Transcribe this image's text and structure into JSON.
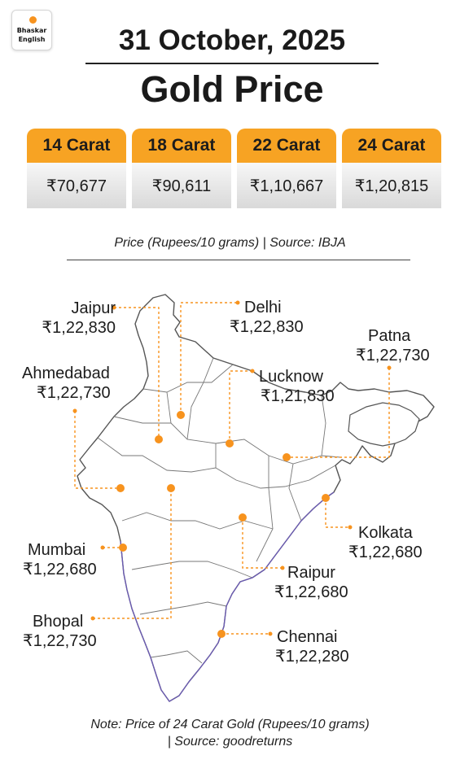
{
  "logo": {
    "line1": "Bhaskar",
    "line2": "English"
  },
  "header": {
    "date": "31 October, 2025",
    "title": "Gold Price"
  },
  "prices": [
    {
      "label": "14 Carat",
      "value": "₹70,677"
    },
    {
      "label": "18 Carat",
      "value": "₹90,611"
    },
    {
      "label": "22 Carat",
      "value": "₹1,10,667"
    },
    {
      "label": "24 Carat",
      "value": "₹1,20,815"
    }
  ],
  "source": "Price (Rupees/10 grams) | Source: IBJA",
  "cities": [
    {
      "name": "Jaipur",
      "price": "₹1,22,830"
    },
    {
      "name": "Delhi",
      "price": "₹1,22,830"
    },
    {
      "name": "Patna",
      "price": "₹1,22,730"
    },
    {
      "name": "Ahmedabad",
      "price": "₹1,22,730"
    },
    {
      "name": "Lucknow",
      "price": "₹1,21,830"
    },
    {
      "name": "Mumbai",
      "price": "₹1,22,680"
    },
    {
      "name": "Kolkata",
      "price": "₹1,22,680"
    },
    {
      "name": "Raipur",
      "price": "₹1,22,680"
    },
    {
      "name": "Bhopal",
      "price": "₹1,22,730"
    },
    {
      "name": "Chennai",
      "price": "₹1,22,280"
    }
  ],
  "note": {
    "line1": "Note: Price of 24 Carat Gold (Rupees/10 grams)",
    "line2": "| Source: goodreturns"
  },
  "colors": {
    "accent": "#f7a323",
    "marker": "#f7931e"
  }
}
